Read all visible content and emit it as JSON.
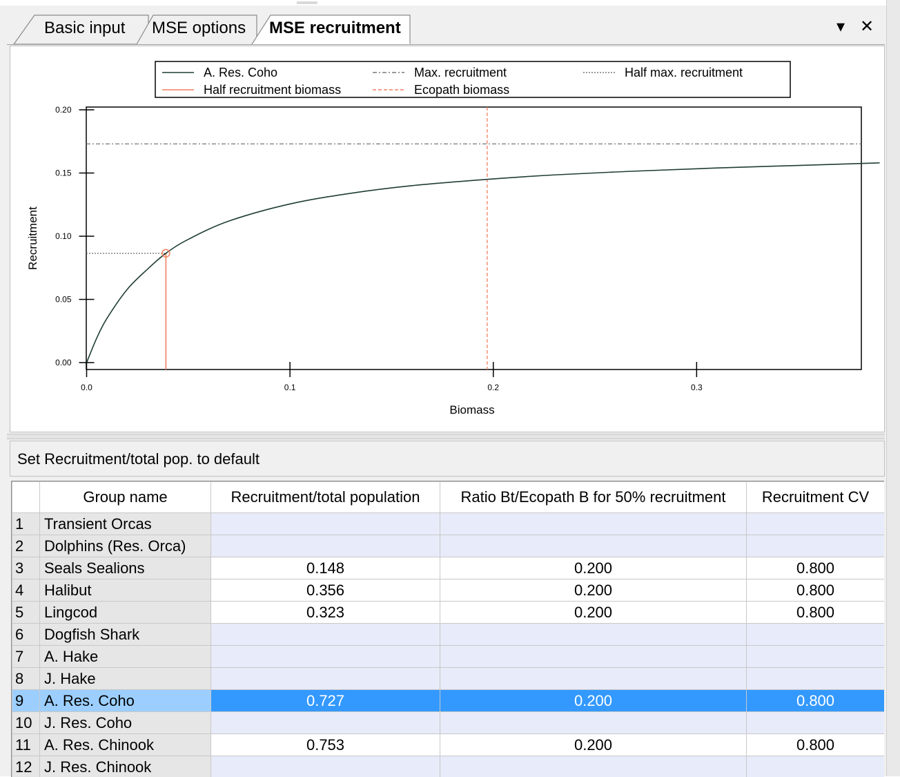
{
  "tabs": [
    {
      "label": "Basic input",
      "active": false
    },
    {
      "label": "MSE options",
      "active": false
    },
    {
      "label": "MSE recruitment",
      "active": true
    }
  ],
  "window_controls": {
    "dropdown_glyph": "▾",
    "close_glyph": "✕"
  },
  "reset_button_label": "Set Recruitment/total pop. to default",
  "chart_data": {
    "type": "line",
    "xlabel": "Biomass",
    "ylabel": "Recruitment",
    "xlim": [
      0,
      0.39
    ],
    "ylim": [
      0,
      0.2
    ],
    "xticks": [
      "0.0",
      "0.1",
      "0.2",
      "0.3"
    ],
    "yticks": [
      "0.00",
      "0.05",
      "0.10",
      "0.15",
      "0.20"
    ],
    "legend": {
      "placement": "top",
      "entries": [
        {
          "label": "A. Res. Coho",
          "style": "solid",
          "color": "#1f3d33"
        },
        {
          "label": "Max. recruitment",
          "style": "dash-dot",
          "color": "#777777"
        },
        {
          "label": "Half max. recruitment",
          "style": "dotted",
          "color": "#777777"
        },
        {
          "label": "Half recruitment biomass",
          "style": "solid",
          "color": "#f08060"
        },
        {
          "label": "Ecopath biomass",
          "style": "dashed",
          "color": "#f08060"
        }
      ]
    },
    "series": [
      {
        "name": "A. Res. Coho",
        "x": [
          0,
          0.005,
          0.01,
          0.02,
          0.03,
          0.039,
          0.05,
          0.07,
          0.1,
          0.13,
          0.16,
          0.197,
          0.23,
          0.27,
          0.31,
          0.35,
          0.39
        ],
        "y": [
          0,
          0.0195,
          0.035,
          0.058,
          0.074,
          0.0865,
          0.0975,
          0.112,
          0.1255,
          0.134,
          0.14,
          0.145,
          0.1485,
          0.1515,
          0.154,
          0.156,
          0.158
        ]
      }
    ],
    "max_recruitment": 0.173,
    "half_max_recruitment": 0.0865,
    "half_recruitment_biomass": 0.039,
    "ecopath_biomass": 0.197,
    "grid": false
  },
  "table": {
    "columns": [
      "",
      "Group name",
      "Recruitment/total population",
      "Ratio Bt/Ecopath B for 50% recruitment",
      "Recruitment CV"
    ],
    "rows": [
      {
        "num": "1",
        "name": "Transient Orcas",
        "recruit": "",
        "ratio": "",
        "cv": "",
        "enabled": false,
        "selected": false
      },
      {
        "num": "2",
        "name": "Dolphins (Res. Orca)",
        "recruit": "",
        "ratio": "",
        "cv": "",
        "enabled": false,
        "selected": false
      },
      {
        "num": "3",
        "name": "Seals Sealions",
        "recruit": "0.148",
        "ratio": "0.200",
        "cv": "0.800",
        "enabled": true,
        "selected": false
      },
      {
        "num": "4",
        "name": "Halibut",
        "recruit": "0.356",
        "ratio": "0.200",
        "cv": "0.800",
        "enabled": true,
        "selected": false
      },
      {
        "num": "5",
        "name": "Lingcod",
        "recruit": "0.323",
        "ratio": "0.200",
        "cv": "0.800",
        "enabled": true,
        "selected": false
      },
      {
        "num": "6",
        "name": "Dogfish Shark",
        "recruit": "",
        "ratio": "",
        "cv": "",
        "enabled": false,
        "selected": false
      },
      {
        "num": "7",
        "name": "A. Hake",
        "recruit": "",
        "ratio": "",
        "cv": "",
        "enabled": false,
        "selected": false
      },
      {
        "num": "8",
        "name": "J. Hake",
        "recruit": "",
        "ratio": "",
        "cv": "",
        "enabled": false,
        "selected": false
      },
      {
        "num": "9",
        "name": "A. Res. Coho",
        "recruit": "0.727",
        "ratio": "0.200",
        "cv": "0.800",
        "enabled": true,
        "selected": true
      },
      {
        "num": "10",
        "name": "J. Res. Coho",
        "recruit": "",
        "ratio": "",
        "cv": "",
        "enabled": false,
        "selected": false
      },
      {
        "num": "11",
        "name": "A. Res. Chinook",
        "recruit": "0.753",
        "ratio": "0.200",
        "cv": "0.800",
        "enabled": true,
        "selected": false
      },
      {
        "num": "12",
        "name": "J. Res. Chinook",
        "recruit": "",
        "ratio": "",
        "cv": "",
        "enabled": false,
        "selected": false
      }
    ]
  }
}
